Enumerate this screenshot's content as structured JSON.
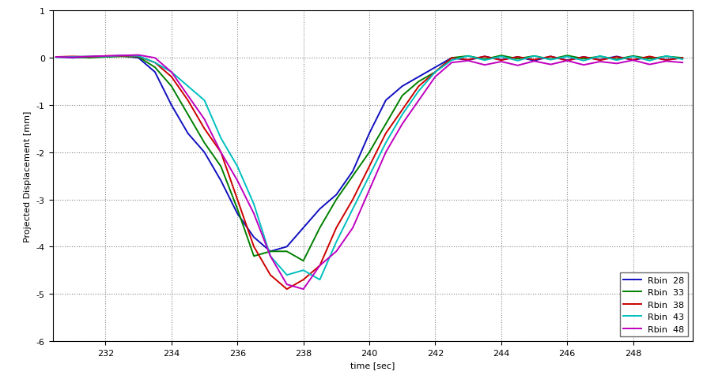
{
  "chart_data": {
    "type": "line",
    "x_label": "time [sec]",
    "y_label": "Projected Displacement [mm]",
    "x": [
      230.5,
      231.0,
      231.5,
      232.0,
      232.5,
      233.0,
      233.5,
      234.0,
      234.5,
      235.0,
      235.5,
      236.0,
      236.5,
      237.0,
      237.5,
      238.0,
      238.5,
      239.0,
      239.5,
      240.0,
      240.5,
      241.0,
      241.5,
      242.0,
      242.5,
      243.0,
      243.5,
      244.0,
      244.5,
      245.0,
      245.5,
      246.0,
      246.5,
      247.0,
      247.5,
      248.0,
      248.5,
      249.0,
      249.5
    ],
    "series": [
      {
        "name": "Rbin  28",
        "color": "#1010c0",
        "values": [
          0.02,
          0.0,
          0.02,
          0.03,
          0.04,
          0.0,
          -0.3,
          -1.0,
          -1.6,
          -2.0,
          -2.6,
          -3.3,
          -3.8,
          -4.1,
          -4.0,
          -3.6,
          -3.2,
          -2.9,
          -2.4,
          -1.6,
          -0.9,
          -0.6,
          -0.4,
          -0.2,
          0.0,
          -0.05,
          0.03,
          -0.04,
          0.02,
          -0.06,
          0.03,
          -0.05,
          0.02,
          -0.04,
          0.03,
          -0.05,
          0.02,
          -0.04,
          0.0
        ]
      },
      {
        "name": "Rbin  33",
        "color": "#008000",
        "values": [
          0.02,
          0.02,
          0.0,
          0.02,
          0.03,
          0.02,
          -0.2,
          -0.6,
          -1.2,
          -1.8,
          -2.3,
          -3.2,
          -4.2,
          -4.1,
          -4.1,
          -4.3,
          -3.6,
          -3.0,
          -2.5,
          -2.0,
          -1.4,
          -0.8,
          -0.5,
          -0.3,
          0.0,
          0.04,
          -0.03,
          0.05,
          -0.02,
          0.04,
          -0.03,
          0.05,
          -0.02,
          0.03,
          -0.03,
          0.04,
          -0.02,
          0.03,
          0.0
        ]
      },
      {
        "name": "Rbin  38",
        "color": "#cc0000",
        "values": [
          0.02,
          0.03,
          0.02,
          0.04,
          0.04,
          0.03,
          -0.1,
          -0.4,
          -0.9,
          -1.5,
          -2.0,
          -3.0,
          -4.0,
          -4.6,
          -4.9,
          -4.7,
          -4.4,
          -3.6,
          -3.0,
          -2.3,
          -1.6,
          -1.1,
          -0.6,
          -0.3,
          0.0,
          -0.04,
          0.03,
          -0.05,
          0.02,
          -0.04,
          0.03,
          -0.06,
          0.02,
          -0.05,
          0.02,
          -0.04,
          0.03,
          -0.05,
          0.0
        ]
      },
      {
        "name": "Rbin  43",
        "color": "#00bfbf",
        "values": [
          0.01,
          0.02,
          0.03,
          0.03,
          0.05,
          0.04,
          -0.1,
          -0.3,
          -0.6,
          -0.9,
          -1.7,
          -2.3,
          -3.1,
          -4.2,
          -4.6,
          -4.5,
          -4.7,
          -3.9,
          -3.2,
          -2.5,
          -1.8,
          -1.2,
          -0.7,
          -0.3,
          -0.05,
          0.04,
          -0.05,
          0.03,
          -0.06,
          0.04,
          -0.04,
          0.03,
          -0.06,
          0.04,
          -0.05,
          0.03,
          -0.06,
          0.04,
          -0.03
        ]
      },
      {
        "name": "Rbin  48",
        "color": "#bf00bf",
        "values": [
          0.02,
          0.01,
          0.03,
          0.04,
          0.05,
          0.06,
          0.0,
          -0.3,
          -0.8,
          -1.3,
          -2.0,
          -2.6,
          -3.3,
          -4.2,
          -4.8,
          -4.9,
          -4.4,
          -4.1,
          -3.6,
          -2.8,
          -2.0,
          -1.4,
          -0.9,
          -0.4,
          -0.1,
          -0.06,
          -0.15,
          -0.08,
          -0.16,
          -0.07,
          -0.14,
          -0.06,
          -0.15,
          -0.08,
          -0.12,
          -0.05,
          -0.14,
          -0.07,
          -0.1
        ]
      }
    ],
    "xlim": [
      230.4,
      249.8
    ],
    "xticks": [
      232,
      234,
      236,
      238,
      240,
      242,
      244,
      246,
      248
    ],
    "ylim": [
      -6,
      1
    ],
    "yticks": [
      -6,
      -5,
      -4,
      -3,
      -2,
      -1,
      0,
      1
    ],
    "grid": true,
    "legend": "lower right"
  }
}
